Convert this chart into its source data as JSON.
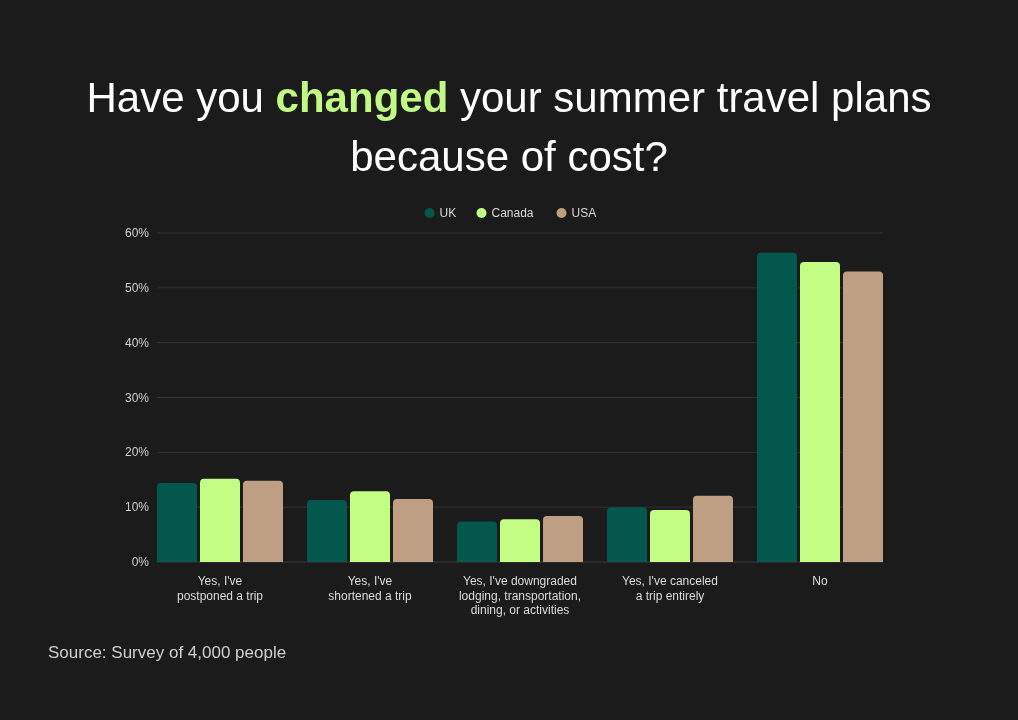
{
  "chart_data": {
    "type": "bar",
    "title": "Have you changed your summer travel plans\nbecause of cost?",
    "categories": [
      "Yes, I've\npostponed a trip",
      "Yes, I've\nshortened a trip",
      "Yes, I've downgraded\nlodging, transportation,\ndining, or activities",
      "Yes, I've canceled\na trip entirely",
      "No"
    ],
    "series": [
      {
        "name": "UK",
        "color": "#04574c",
        "values": [
          14.4,
          11.3,
          7.4,
          10.0,
          56.4
        ]
      },
      {
        "name": "Canada",
        "color": "#c4fd84",
        "values": [
          15.2,
          12.9,
          7.8,
          9.5,
          54.7
        ]
      },
      {
        "name": "USA",
        "color": "#bf9f84",
        "values": [
          14.8,
          11.5,
          8.4,
          12.1,
          53.0
        ]
      }
    ],
    "ylim": [
      0,
      60
    ],
    "yticks": [
      {
        "value": 0,
        "label": "0%"
      },
      {
        "value": 10,
        "label": "10%"
      },
      {
        "value": 20,
        "label": "20%"
      },
      {
        "value": 30,
        "label": "30%"
      },
      {
        "value": 40,
        "label": "40%"
      },
      {
        "value": 50,
        "label": "50%"
      },
      {
        "value": 60,
        "label": "60%"
      }
    ],
    "grid": "y",
    "legend": "top",
    "annotations": [
      "Source: Survey of 4,000 people"
    ]
  }
}
